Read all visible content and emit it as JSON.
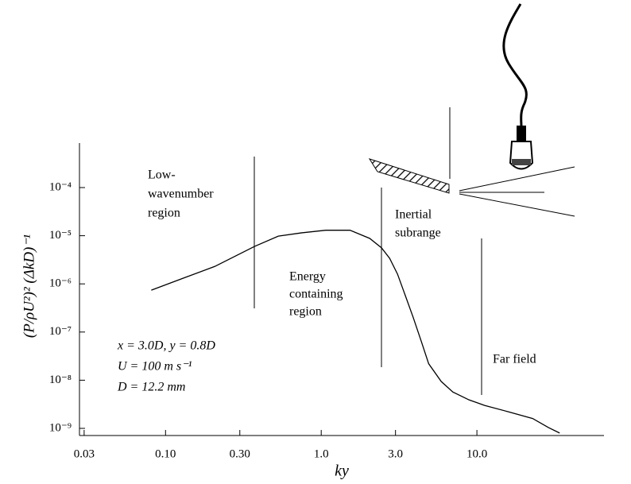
{
  "chart_data": {
    "type": "line",
    "x_scale": "log",
    "y_scale": "log",
    "xlabel": "ky",
    "ylabel": "(P/ρU²)² (ΔkD)⁻¹",
    "xlim": [
      0.028,
      65.5
    ],
    "ylim": [
      7.1e-10,
      0.00084
    ],
    "xticks": [
      {
        "value": 0.03,
        "label": "0.03"
      },
      {
        "value": 0.1,
        "label": "0.10"
      },
      {
        "value": 0.3,
        "label": "0.30"
      },
      {
        "value": 1,
        "label": "1.0"
      },
      {
        "value": 3,
        "label": "3.0"
      },
      {
        "value": 10,
        "label": "10.0"
      }
    ],
    "yticks": [
      {
        "value": 1e-09,
        "label": "10⁻⁹"
      },
      {
        "value": 1e-08,
        "label": "10⁻⁸"
      },
      {
        "value": 1e-07,
        "label": "10⁻⁷"
      },
      {
        "value": 1e-06,
        "label": "10⁻⁶"
      },
      {
        "value": 1e-05,
        "label": "10⁻⁵"
      },
      {
        "value": 0.0001,
        "label": "10⁻⁴"
      }
    ],
    "color": "#000000",
    "x": [
      0.081,
      0.129,
      0.207,
      0.373,
      0.53,
      0.75,
      1.07,
      1.53,
      2.05,
      2.44,
      2.75,
      3.09,
      3.47,
      3.9,
      4.4,
      4.9,
      5.9,
      7.0,
      8.9,
      11.2,
      16,
      22.8,
      28.8,
      34
    ],
    "values": [
      7.4e-07,
      1.3e-06,
      2.3e-06,
      6e-06,
      9.8e-06,
      1.15e-05,
      1.3e-05,
      1.3e-05,
      8.8e-06,
      5.6e-06,
      3.4e-06,
      1.6e-06,
      5.7e-07,
      2e-07,
      6.3e-08,
      2.2e-08,
      9.4e-09,
      5.7e-09,
      3.9e-09,
      3e-09,
      2.2e-09,
      1.6e-09,
      1.04e-09,
      8e-10
    ],
    "annotations": {
      "low": [
        "Low-",
        "wavenumber",
        "region"
      ],
      "energy": [
        "Energy",
        "containing",
        "region"
      ],
      "inertial": [
        "Inertial",
        "subrange"
      ],
      "far": [
        "Far field"
      ],
      "params": [
        "x = 3.0D, y = 0.8D",
        "U = 100 m s⁻¹",
        "D = 12.2 mm"
      ]
    }
  }
}
